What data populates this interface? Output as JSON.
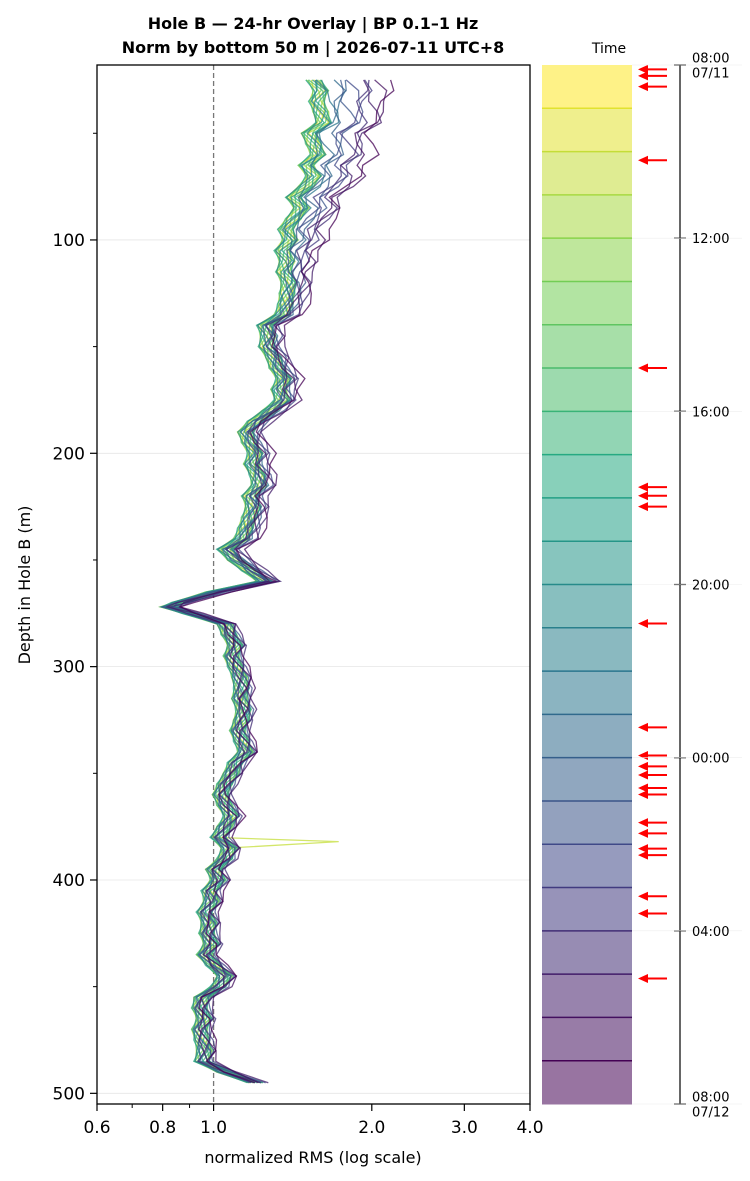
{
  "chart_data": {
    "type": "line",
    "title": [
      "Hole B — 24-hr Overlay  |  BP 0.1–1 Hz",
      "Norm by bottom 50 m  |  2026-07-11 UTC+8"
    ],
    "xlabel": "normalized RMS  (log scale)",
    "ylabel": "Depth in Hole B (m)",
    "xscale": "log",
    "xlim": [
      0.6,
      4.0
    ],
    "ylim": [
      505,
      18
    ],
    "x_ticks": [
      0.6,
      0.8,
      1.0,
      2.0,
      3.0,
      4.0
    ],
    "x_tick_labels": [
      "0.6",
      "0.8",
      "1.0",
      "2.0",
      "3.0",
      "4.0"
    ],
    "y_ticks": [
      100,
      200,
      300,
      400,
      500
    ],
    "y_tick_labels": [
      "100",
      "200",
      "300",
      "400",
      "500"
    ],
    "reference_line_x": 1.0,
    "grid": true,
    "depths": [
      25,
      30,
      35,
      40,
      45,
      50,
      55,
      60,
      65,
      70,
      75,
      80,
      85,
      90,
      95,
      100,
      105,
      110,
      115,
      120,
      125,
      130,
      135,
      140,
      145,
      150,
      155,
      160,
      165,
      170,
      175,
      180,
      185,
      190,
      195,
      200,
      205,
      210,
      215,
      220,
      225,
      230,
      235,
      240,
      245,
      250,
      255,
      260,
      265,
      270,
      272,
      275,
      280,
      285,
      290,
      295,
      300,
      305,
      310,
      315,
      320,
      325,
      330,
      335,
      340,
      345,
      350,
      355,
      360,
      365,
      370,
      375,
      380,
      385,
      390,
      395,
      400,
      405,
      410,
      415,
      420,
      425,
      430,
      435,
      440,
      445,
      450,
      455,
      460,
      465,
      470,
      475,
      480,
      485,
      490,
      495
    ],
    "base_profile": [
      1.55,
      1.6,
      1.57,
      1.6,
      1.62,
      1.52,
      1.55,
      1.58,
      1.5,
      1.55,
      1.5,
      1.42,
      1.47,
      1.42,
      1.37,
      1.4,
      1.35,
      1.38,
      1.36,
      1.39,
      1.38,
      1.37,
      1.35,
      1.25,
      1.27,
      1.26,
      1.3,
      1.32,
      1.36,
      1.33,
      1.35,
      1.28,
      1.2,
      1.15,
      1.17,
      1.2,
      1.18,
      1.21,
      1.22,
      1.17,
      1.19,
      1.17,
      1.15,
      1.13,
      1.05,
      1.1,
      1.17,
      1.25,
      1.0,
      0.86,
      0.82,
      0.9,
      1.05,
      1.07,
      1.1,
      1.08,
      1.1,
      1.12,
      1.13,
      1.12,
      1.14,
      1.13,
      1.11,
      1.13,
      1.15,
      1.1,
      1.08,
      1.05,
      1.03,
      1.05,
      1.08,
      1.05,
      1.02,
      1.07,
      1.05,
      1.0,
      1.02,
      0.98,
      0.99,
      0.96,
      0.98,
      0.97,
      0.99,
      0.96,
      1.0,
      1.05,
      1.02,
      0.95,
      0.94,
      0.96,
      0.94,
      0.95,
      0.96,
      0.95,
      1.05,
      1.2
    ],
    "anomaly": {
      "depth": 382,
      "value": 1.73
    },
    "colorbar": {
      "label": "Time",
      "tick_labels": [
        "08:00\n07/11",
        "12:00",
        "16:00",
        "20:00",
        "00:00",
        "04:00",
        "08:00\n07/12"
      ],
      "n_bands": 24,
      "colormap": [
        "#440154",
        "#414487",
        "#2a788e",
        "#22a884",
        "#7ad151",
        "#fde725"
      ]
    },
    "arrow_marks_hours": [
      0.1,
      0.25,
      0.5,
      2.2,
      7.0,
      9.75,
      9.95,
      10.2,
      12.9,
      15.3,
      15.95,
      16.2,
      16.4,
      16.7,
      16.85,
      17.5,
      17.75,
      18.1,
      18.25,
      19.2,
      19.6,
      21.1
    ],
    "arrow_color": "#ff0000"
  }
}
